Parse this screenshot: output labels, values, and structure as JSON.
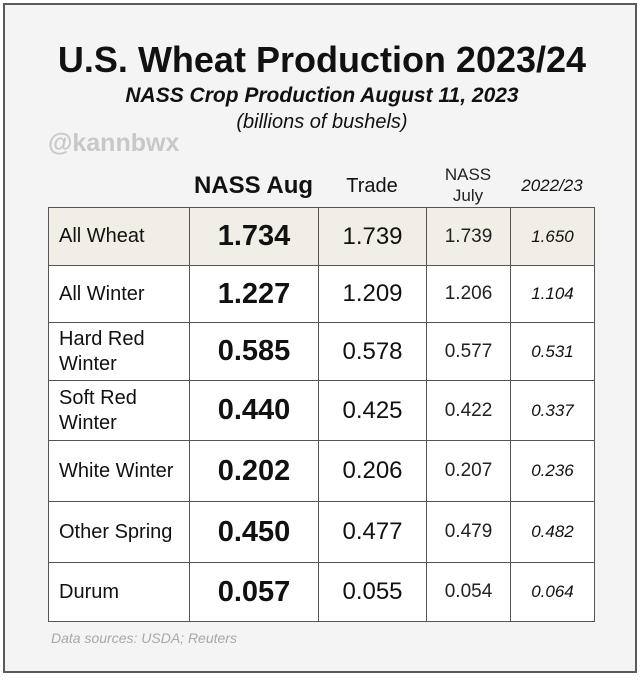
{
  "title": "U.S. Wheat Production 2023/24",
  "subtitle": "NASS Crop Production August 11, 2023",
  "units": "(billions of bushels)",
  "watermark": "@kannbwx",
  "source": "Data sources: USDA; Reuters",
  "chart_data": {
    "type": "table",
    "columns": [
      "NASS Aug",
      "Trade",
      "NASS\nJuly",
      "2022/23"
    ],
    "rows": [
      {
        "label": "All Wheat",
        "values": [
          "1.734",
          "1.739",
          "1.739",
          "1.650"
        ]
      },
      {
        "label": "All Winter",
        "values": [
          "1.227",
          "1.209",
          "1.206",
          "1.104"
        ]
      },
      {
        "label": "Hard Red\nWinter",
        "values": [
          "0.585",
          "0.578",
          "0.577",
          "0.531"
        ]
      },
      {
        "label": "Soft Red\nWinter",
        "values": [
          "0.440",
          "0.425",
          "0.422",
          "0.337"
        ]
      },
      {
        "label": "White Winter",
        "values": [
          "0.202",
          "0.206",
          "0.207",
          "0.236"
        ]
      },
      {
        "label": "Other Spring",
        "values": [
          "0.450",
          "0.477",
          "0.479",
          "0.482"
        ]
      },
      {
        "label": "Durum",
        "values": [
          "0.057",
          "0.055",
          "0.054",
          "0.064"
        ]
      }
    ],
    "highlight_row": "All Wheat",
    "highlight_color": "#f1eee6"
  }
}
